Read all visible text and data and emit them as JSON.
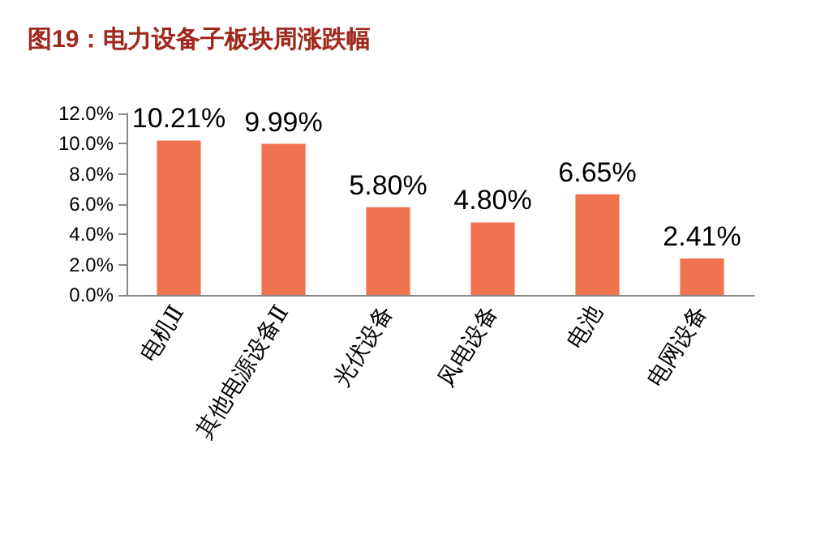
{
  "chart_data": {
    "type": "bar",
    "title": "图19：电力设备子板块周涨跌幅",
    "categories": [
      "电机Ⅱ",
      "其他电源设备Ⅱ",
      "光伏设备",
      "风电设备",
      "电池",
      "电网设备"
    ],
    "values": [
      10.21,
      9.99,
      5.8,
      4.8,
      6.65,
      2.41
    ],
    "value_labels": [
      "10.21%",
      "9.99%",
      "5.80%",
      "4.80%",
      "6.65%",
      "2.41%"
    ],
    "color": "#f07350",
    "ylim": [
      0,
      12
    ],
    "yticks": [
      {
        "value": 0,
        "label": "0.0%"
      },
      {
        "value": 2,
        "label": "2.0%"
      },
      {
        "value": 4,
        "label": "4.0%"
      },
      {
        "value": 6,
        "label": "6.0%"
      },
      {
        "value": 8,
        "label": "8.0%"
      },
      {
        "value": 10,
        "label": "10.0%"
      },
      {
        "value": 12,
        "label": "12.0%"
      }
    ],
    "grid": false
  }
}
